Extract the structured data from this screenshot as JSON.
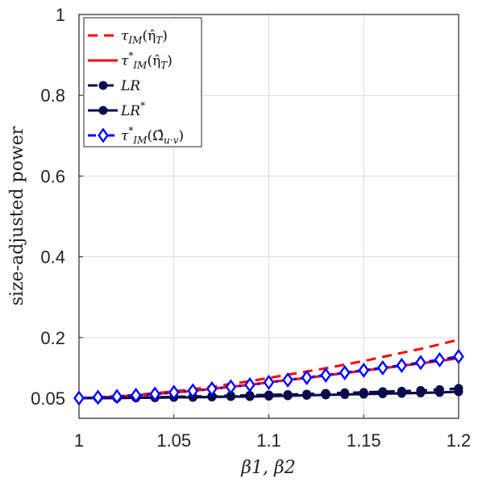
{
  "chart_data": {
    "type": "line",
    "title": "",
    "xlabel": "β1, β2",
    "ylabel": "size-adjusted power",
    "xlim": [
      1,
      1.2
    ],
    "ylim": [
      0,
      1
    ],
    "xticks": [
      1,
      1.05,
      1.1,
      1.15,
      1.2
    ],
    "xtick_labels": [
      "1",
      "1.05",
      "1.1",
      "1.15",
      "1.2"
    ],
    "yticks": [
      0.05,
      0.2,
      0.4,
      0.6,
      0.8,
      1
    ],
    "ytick_labels": [
      "0.05",
      "0.2",
      "0.4",
      "0.6",
      "0.8",
      "1"
    ],
    "grid": true,
    "legend_position": "top-left",
    "x": [
      1.0,
      1.01,
      1.02,
      1.03,
      1.04,
      1.05,
      1.06,
      1.07,
      1.08,
      1.09,
      1.1,
      1.11,
      1.12,
      1.13,
      1.14,
      1.15,
      1.16,
      1.17,
      1.18,
      1.19,
      1.2
    ],
    "series": [
      {
        "name": "τ_IM(η̂_T)",
        "color": "#ff0000",
        "dash": "dashed",
        "marker": "none",
        "values": [
          0.05,
          0.052,
          0.055,
          0.058,
          0.062,
          0.067,
          0.072,
          0.078,
          0.085,
          0.092,
          0.1,
          0.108,
          0.116,
          0.124,
          0.133,
          0.142,
          0.152,
          0.162,
          0.172,
          0.183,
          0.195
        ]
      },
      {
        "name": "τ*_IM(η̂_T)",
        "color": "#ff0000",
        "dash": "solid",
        "marker": "none",
        "values": [
          0.05,
          0.052,
          0.054,
          0.057,
          0.06,
          0.064,
          0.068,
          0.073,
          0.078,
          0.083,
          0.089,
          0.095,
          0.1,
          0.106,
          0.112,
          0.118,
          0.124,
          0.13,
          0.136,
          0.142,
          0.149
        ]
      },
      {
        "name": "LR",
        "color": "#0b0b4a",
        "dash": "dashed",
        "marker": "circle",
        "values": [
          0.05,
          0.05,
          0.051,
          0.051,
          0.052,
          0.053,
          0.054,
          0.055,
          0.056,
          0.057,
          0.058,
          0.059,
          0.06,
          0.062,
          0.063,
          0.064,
          0.066,
          0.067,
          0.069,
          0.071,
          0.074
        ]
      },
      {
        "name": "LR*",
        "color": "#0b0b4a",
        "dash": "solid",
        "marker": "circle",
        "values": [
          0.05,
          0.05,
          0.05,
          0.051,
          0.051,
          0.052,
          0.052,
          0.053,
          0.054,
          0.054,
          0.055,
          0.056,
          0.057,
          0.058,
          0.059,
          0.06,
          0.061,
          0.062,
          0.063,
          0.064,
          0.066
        ]
      },
      {
        "name": "τ*_IM(Ω̂_u·v)",
        "color": "#0000ff",
        "dash": "dashdot",
        "marker": "diamond",
        "values": [
          0.05,
          0.052,
          0.054,
          0.057,
          0.06,
          0.064,
          0.068,
          0.073,
          0.078,
          0.083,
          0.089,
          0.095,
          0.101,
          0.107,
          0.113,
          0.119,
          0.125,
          0.131,
          0.138,
          0.145,
          0.153
        ]
      }
    ]
  }
}
